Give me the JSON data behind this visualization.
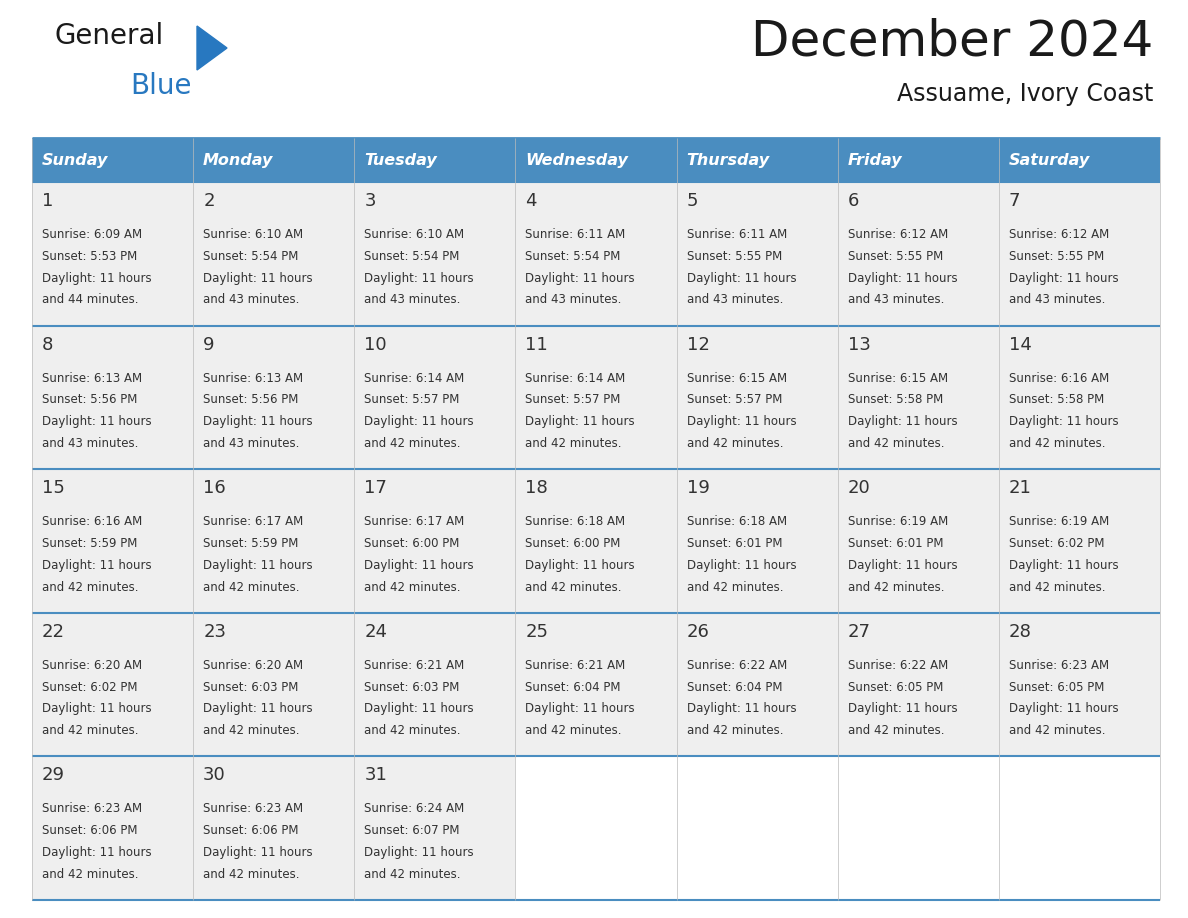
{
  "title": "December 2024",
  "subtitle": "Assuame, Ivory Coast",
  "header_bg": "#4A8DC0",
  "header_text_color": "#FFFFFF",
  "cell_bg": "#EFEFEF",
  "border_color": "#4A8DC0",
  "text_color": "#333333",
  "days_of_week": [
    "Sunday",
    "Monday",
    "Tuesday",
    "Wednesday",
    "Thursday",
    "Friday",
    "Saturday"
  ],
  "weeks": [
    [
      {
        "day": 1,
        "sunrise": "6:09 AM",
        "sunset": "5:53 PM",
        "daylight_mins": "44"
      },
      {
        "day": 2,
        "sunrise": "6:10 AM",
        "sunset": "5:54 PM",
        "daylight_mins": "43"
      },
      {
        "day": 3,
        "sunrise": "6:10 AM",
        "sunset": "5:54 PM",
        "daylight_mins": "43"
      },
      {
        "day": 4,
        "sunrise": "6:11 AM",
        "sunset": "5:54 PM",
        "daylight_mins": "43"
      },
      {
        "day": 5,
        "sunrise": "6:11 AM",
        "sunset": "5:55 PM",
        "daylight_mins": "43"
      },
      {
        "day": 6,
        "sunrise": "6:12 AM",
        "sunset": "5:55 PM",
        "daylight_mins": "43"
      },
      {
        "day": 7,
        "sunrise": "6:12 AM",
        "sunset": "5:55 PM",
        "daylight_mins": "43"
      }
    ],
    [
      {
        "day": 8,
        "sunrise": "6:13 AM",
        "sunset": "5:56 PM",
        "daylight_mins": "43"
      },
      {
        "day": 9,
        "sunrise": "6:13 AM",
        "sunset": "5:56 PM",
        "daylight_mins": "43"
      },
      {
        "day": 10,
        "sunrise": "6:14 AM",
        "sunset": "5:57 PM",
        "daylight_mins": "42"
      },
      {
        "day": 11,
        "sunrise": "6:14 AM",
        "sunset": "5:57 PM",
        "daylight_mins": "42"
      },
      {
        "day": 12,
        "sunrise": "6:15 AM",
        "sunset": "5:57 PM",
        "daylight_mins": "42"
      },
      {
        "day": 13,
        "sunrise": "6:15 AM",
        "sunset": "5:58 PM",
        "daylight_mins": "42"
      },
      {
        "day": 14,
        "sunrise": "6:16 AM",
        "sunset": "5:58 PM",
        "daylight_mins": "42"
      }
    ],
    [
      {
        "day": 15,
        "sunrise": "6:16 AM",
        "sunset": "5:59 PM",
        "daylight_mins": "42"
      },
      {
        "day": 16,
        "sunrise": "6:17 AM",
        "sunset": "5:59 PM",
        "daylight_mins": "42"
      },
      {
        "day": 17,
        "sunrise": "6:17 AM",
        "sunset": "6:00 PM",
        "daylight_mins": "42"
      },
      {
        "day": 18,
        "sunrise": "6:18 AM",
        "sunset": "6:00 PM",
        "daylight_mins": "42"
      },
      {
        "day": 19,
        "sunrise": "6:18 AM",
        "sunset": "6:01 PM",
        "daylight_mins": "42"
      },
      {
        "day": 20,
        "sunrise": "6:19 AM",
        "sunset": "6:01 PM",
        "daylight_mins": "42"
      },
      {
        "day": 21,
        "sunrise": "6:19 AM",
        "sunset": "6:02 PM",
        "daylight_mins": "42"
      }
    ],
    [
      {
        "day": 22,
        "sunrise": "6:20 AM",
        "sunset": "6:02 PM",
        "daylight_mins": "42"
      },
      {
        "day": 23,
        "sunrise": "6:20 AM",
        "sunset": "6:03 PM",
        "daylight_mins": "42"
      },
      {
        "day": 24,
        "sunrise": "6:21 AM",
        "sunset": "6:03 PM",
        "daylight_mins": "42"
      },
      {
        "day": 25,
        "sunrise": "6:21 AM",
        "sunset": "6:04 PM",
        "daylight_mins": "42"
      },
      {
        "day": 26,
        "sunrise": "6:22 AM",
        "sunset": "6:04 PM",
        "daylight_mins": "42"
      },
      {
        "day": 27,
        "sunrise": "6:22 AM",
        "sunset": "6:05 PM",
        "daylight_mins": "42"
      },
      {
        "day": 28,
        "sunrise": "6:23 AM",
        "sunset": "6:05 PM",
        "daylight_mins": "42"
      }
    ],
    [
      {
        "day": 29,
        "sunrise": "6:23 AM",
        "sunset": "6:06 PM",
        "daylight_mins": "42"
      },
      {
        "day": 30,
        "sunrise": "6:23 AM",
        "sunset": "6:06 PM",
        "daylight_mins": "42"
      },
      {
        "day": 31,
        "sunrise": "6:24 AM",
        "sunset": "6:07 PM",
        "daylight_mins": "42"
      },
      null,
      null,
      null,
      null
    ]
  ],
  "logo_general_color": "#1a1a1a",
  "logo_blue_color": "#2878C0",
  "logo_triangle_color": "#2878C0",
  "fig_width": 11.88,
  "fig_height": 9.18,
  "dpi": 100
}
